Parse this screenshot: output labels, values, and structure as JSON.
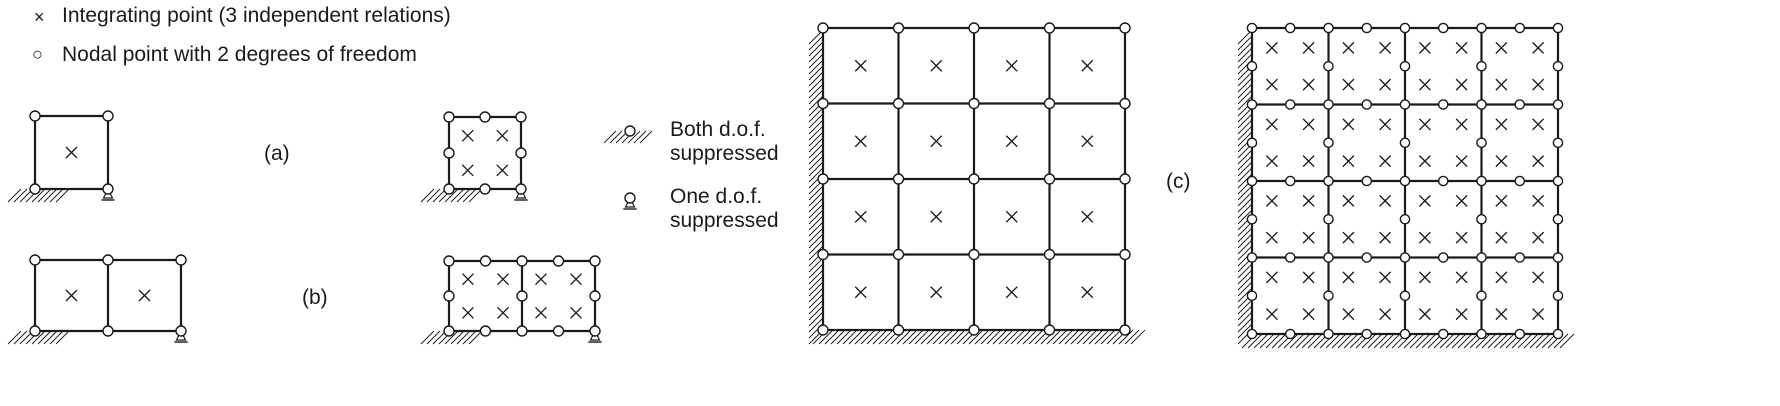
{
  "legend": {
    "integrating_point": "Integrating point (3 independent relations)",
    "nodal_point": "Nodal point with 2 degrees of freedom",
    "both_line1": "Both d.o.f.",
    "both_line2": "suppressed",
    "one_line1": "One d.o.f.",
    "one_line2": "suppressed"
  },
  "labels": {
    "a": "(a)",
    "b": "(b)",
    "c": "(c)"
  },
  "symbols": {
    "cross": "×",
    "circle": "○"
  },
  "colors": {
    "line": "#1a1a1a",
    "background": "#ffffff"
  }
}
